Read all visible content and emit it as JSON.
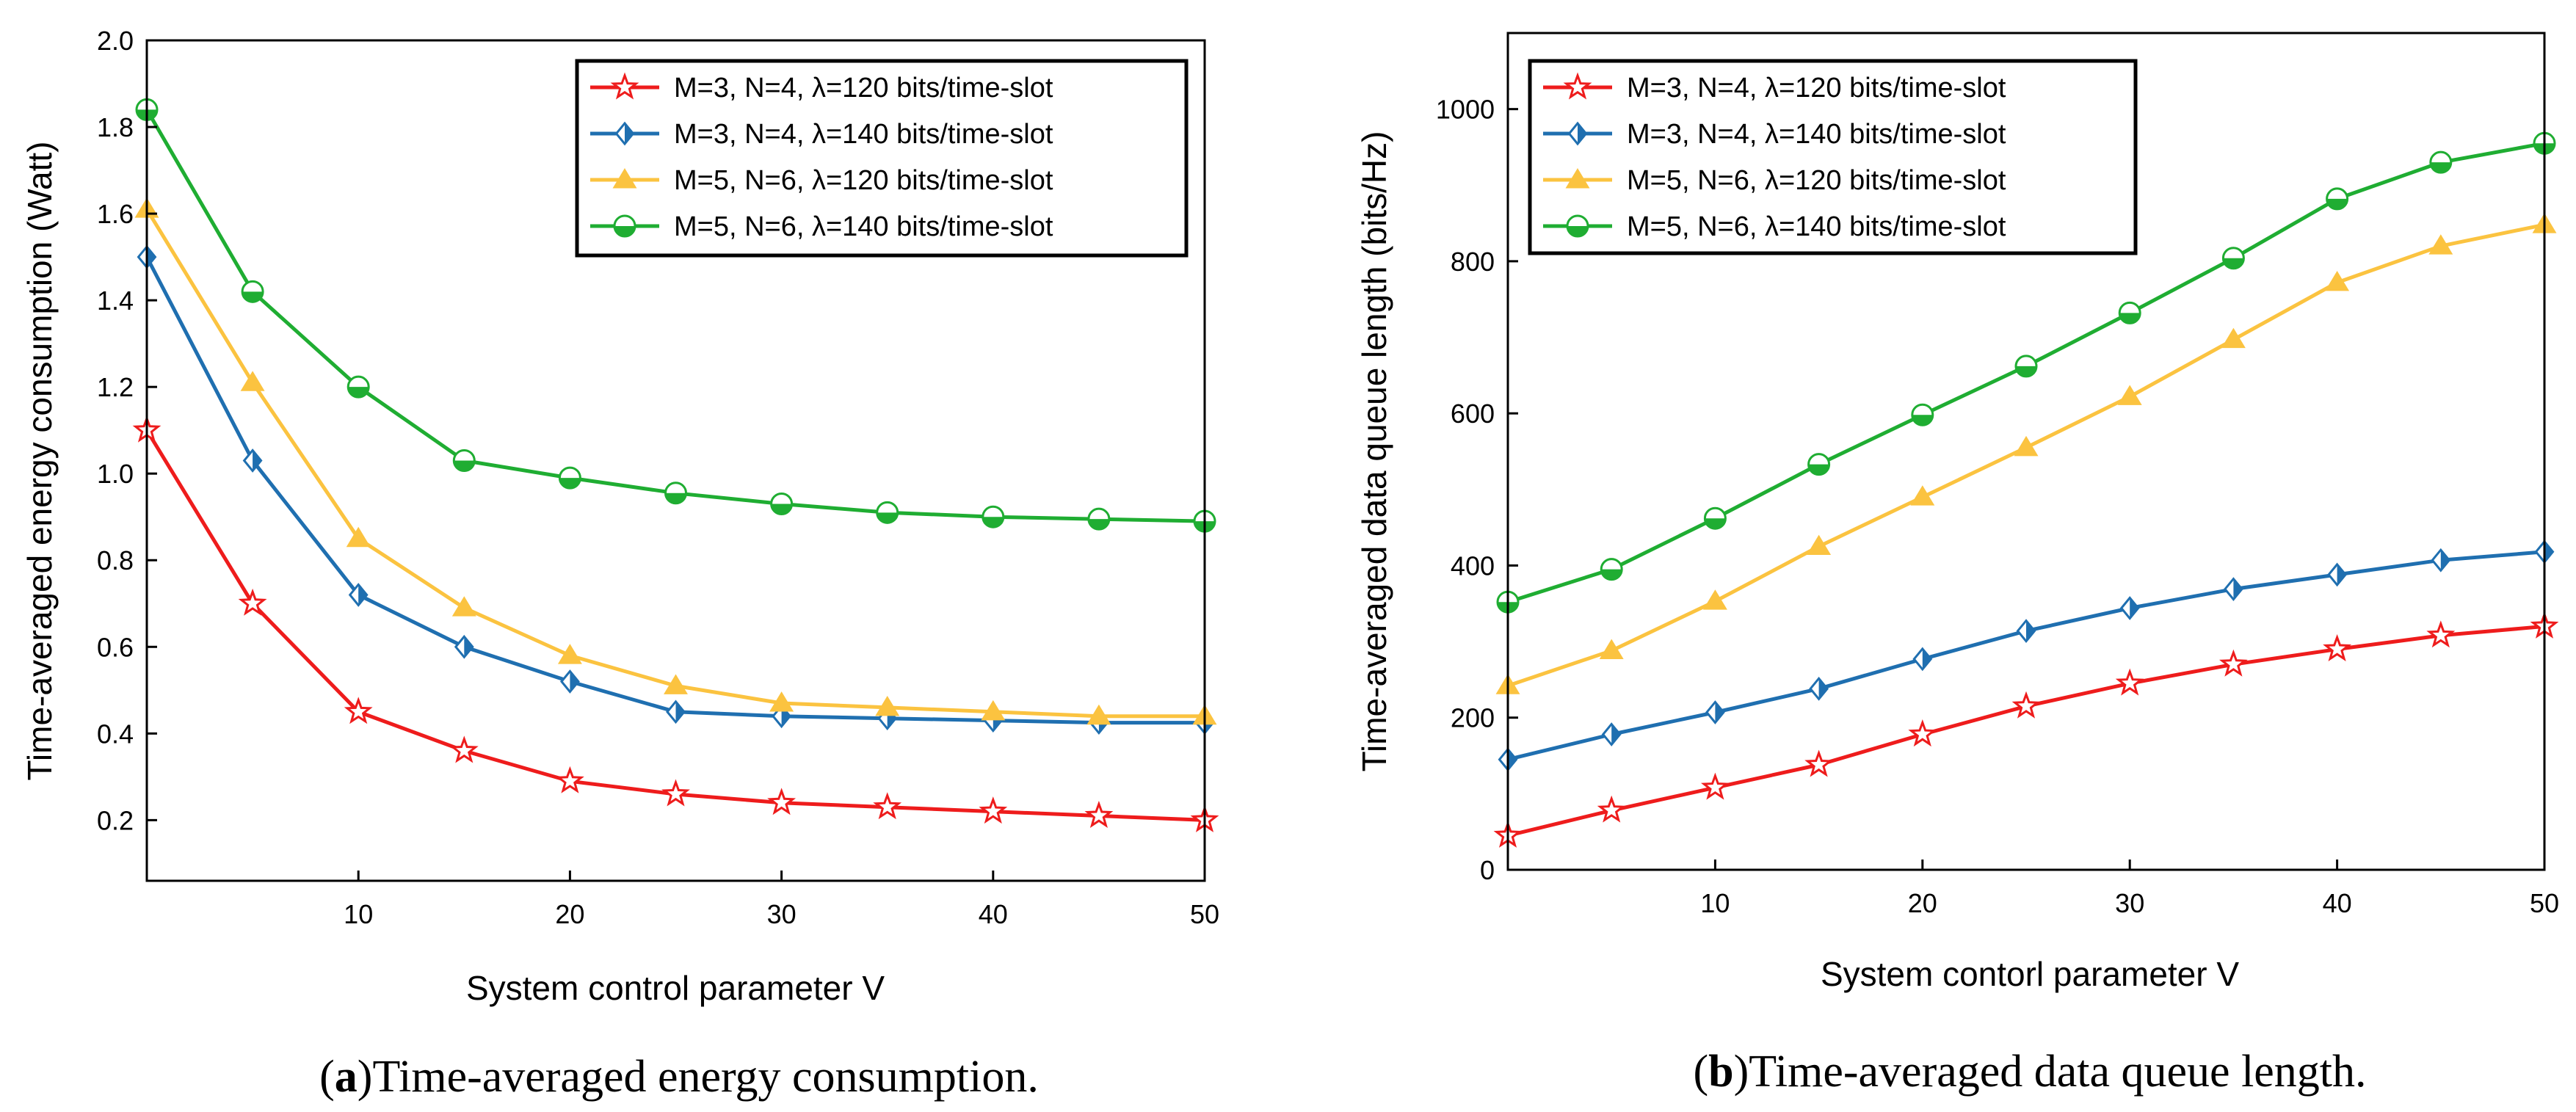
{
  "chart_data": [
    {
      "type": "line",
      "panel": "a",
      "caption_letter": "a",
      "caption_text": "Time-averaged energy consumption.",
      "xlabel": "System control parameter V",
      "ylabel": "Time-averaged energy consumption (Watt)",
      "xlim": [
        0,
        50
      ],
      "ylim": [
        0.06,
        2.0
      ],
      "xticks": [
        10,
        20,
        30,
        40,
        50
      ],
      "yticks": [
        0.2,
        0.4,
        0.6,
        0.8,
        1.0,
        1.2,
        1.4,
        1.6,
        1.8,
        2.0
      ],
      "yticklabels": [
        "0.2",
        "0.4",
        "0.6",
        "0.8",
        "1.0",
        "1.2",
        "1.4",
        "1.6",
        "1.8",
        "2.0"
      ],
      "legend_position": "top-right",
      "x": [
        0,
        5,
        10,
        15,
        20,
        25,
        30,
        35,
        40,
        45,
        50
      ],
      "series": [
        {
          "name": "M=3, N=4, λ=120 bits/time-slot",
          "color": "#ee1c1c",
          "marker": "star",
          "values": [
            1.1,
            0.7,
            0.45,
            0.36,
            0.29,
            0.26,
            0.24,
            0.23,
            0.22,
            0.21,
            0.2
          ]
        },
        {
          "name": "M=3, N=4, λ=140 bits/time-slot",
          "color": "#1f6fb0",
          "marker": "diamond",
          "values": [
            1.5,
            1.03,
            0.72,
            0.6,
            0.52,
            0.45,
            0.44,
            0.435,
            0.43,
            0.425,
            0.425
          ]
        },
        {
          "name": "M=5, N=6, λ=120 bits/time-slot",
          "color": "#fbc340",
          "marker": "triangle",
          "values": [
            1.61,
            1.21,
            0.85,
            0.69,
            0.58,
            0.51,
            0.47,
            0.46,
            0.45,
            0.44,
            0.44
          ]
        },
        {
          "name": "M=5, N=6, λ=140 bits/time-slot",
          "color": "#1fad32",
          "marker": "circle",
          "values": [
            1.84,
            1.42,
            1.2,
            1.03,
            0.99,
            0.955,
            0.93,
            0.91,
            0.9,
            0.895,
            0.89
          ]
        }
      ]
    },
    {
      "type": "line",
      "panel": "b",
      "caption_letter": "b",
      "caption_text": "Time-averaged data queue length.",
      "xlabel": "System contorl parameter V",
      "ylabel": "Time-averaged data queue length (bits/Hz)",
      "xlim": [
        0,
        50
      ],
      "ylim": [
        0,
        1100
      ],
      "xticks": [
        10,
        20,
        30,
        40,
        50
      ],
      "yticks": [
        0,
        200,
        400,
        600,
        800,
        1000
      ],
      "yticklabels": [
        "0",
        "200",
        "400",
        "600",
        "800",
        "1000"
      ],
      "legend_position": "top-left",
      "x": [
        0,
        5,
        10,
        15,
        20,
        25,
        30,
        35,
        40,
        45,
        50
      ],
      "series": [
        {
          "name": "M=3, N=4, λ=120 bits/time-slot",
          "color": "#ee1c1c",
          "marker": "star",
          "values": [
            45,
            78,
            108,
            138,
            178,
            215,
            245,
            270,
            290,
            308,
            320
          ]
        },
        {
          "name": "M=3, N=4, λ=140 bits/time-slot",
          "color": "#1f6fb0",
          "marker": "diamond",
          "values": [
            145,
            178,
            207,
            238,
            277,
            314,
            344,
            369,
            388,
            407,
            418
          ]
        },
        {
          "name": "M=5, N=6, λ=120 bits/time-slot",
          "color": "#fbc340",
          "marker": "triangle",
          "values": [
            242,
            288,
            353,
            425,
            490,
            555,
            622,
            697,
            772,
            820,
            848
          ]
        },
        {
          "name": "M=5, N=6, λ=140 bits/time-slot",
          "color": "#1fad32",
          "marker": "circle",
          "values": [
            352,
            395,
            462,
            533,
            598,
            662,
            732,
            804,
            882,
            930,
            955
          ]
        }
      ]
    }
  ]
}
